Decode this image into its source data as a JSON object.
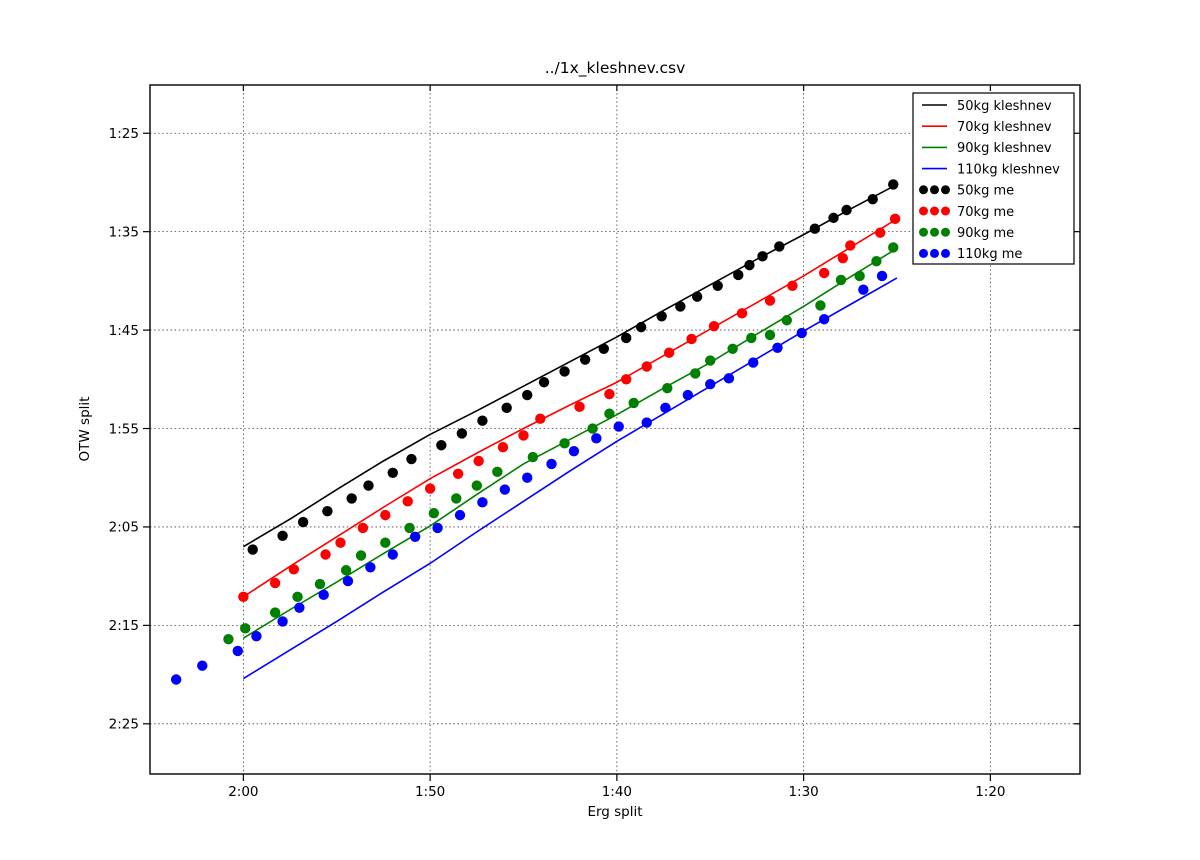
{
  "chart_data": {
    "type": "line+scatter",
    "title": "../1x_kleshnev.csv",
    "xlabel": "Erg split",
    "ylabel": "OTW split",
    "grid": true,
    "background": "#ffffff",
    "x_axis": {
      "label": "Erg split",
      "inverted": true,
      "range_seconds": [
        125.0,
        75.2
      ],
      "ticks": [
        {
          "seconds": 120,
          "label": "2:00"
        },
        {
          "seconds": 110,
          "label": "1:50"
        },
        {
          "seconds": 100,
          "label": "1:40"
        },
        {
          "seconds": 90,
          "label": "1:30"
        },
        {
          "seconds": 80,
          "label": "1:20"
        }
      ]
    },
    "y_axis": {
      "label": "OTW split",
      "inverted": true,
      "range_seconds": [
        80.1,
        150.1
      ],
      "ticks": [
        {
          "seconds": 85,
          "label": "1:25"
        },
        {
          "seconds": 95,
          "label": "1:35"
        },
        {
          "seconds": 105,
          "label": "1:45"
        },
        {
          "seconds": 115,
          "label": "1:55"
        },
        {
          "seconds": 125,
          "label": "2:05"
        },
        {
          "seconds": 135,
          "label": "2:15"
        },
        {
          "seconds": 145,
          "label": "2:25"
        }
      ]
    },
    "legend": {
      "position": "upper-right"
    },
    "series": [
      {
        "name": "50kg kleshnev",
        "kind": "line",
        "color": "#000000",
        "points": [
          [
            120,
            127.0
          ],
          [
            117.5,
            124.2
          ],
          [
            115,
            121.2
          ],
          [
            112.5,
            118.3
          ],
          [
            110,
            115.6
          ],
          [
            107.5,
            113.2
          ],
          [
            105,
            110.7
          ],
          [
            102.5,
            108.2
          ],
          [
            100,
            105.7
          ],
          [
            97.5,
            103.0
          ],
          [
            95,
            100.4
          ],
          [
            92.5,
            97.8
          ],
          [
            90,
            95.3
          ],
          [
            87.5,
            92.7
          ],
          [
            85,
            90.2
          ]
        ]
      },
      {
        "name": "70kg kleshnev",
        "kind": "line",
        "color": "#ff0000",
        "points": [
          [
            120,
            132.1
          ],
          [
            117.5,
            129.0
          ],
          [
            115,
            126.0
          ],
          [
            112.5,
            123.0
          ],
          [
            110,
            120.1
          ],
          [
            107.5,
            117.5
          ],
          [
            105,
            115.0
          ],
          [
            102.5,
            112.6
          ],
          [
            100,
            110.3
          ],
          [
            97.5,
            107.6
          ],
          [
            95,
            104.9
          ],
          [
            92.5,
            102.2
          ],
          [
            90,
            99.5
          ],
          [
            87.5,
            96.6
          ],
          [
            85,
            93.7
          ]
        ]
      },
      {
        "name": "90kg kleshnev",
        "kind": "line",
        "color": "#008000",
        "points": [
          [
            120,
            136.3
          ],
          [
            117.5,
            133.4
          ],
          [
            115,
            130.6
          ],
          [
            112.5,
            127.7
          ],
          [
            110,
            124.9
          ],
          [
            107.5,
            121.7
          ],
          [
            105,
            118.6
          ],
          [
            102.5,
            116.1
          ],
          [
            100,
            113.6
          ],
          [
            97.5,
            110.9
          ],
          [
            95,
            108.3
          ],
          [
            92.5,
            105.4
          ],
          [
            90,
            102.6
          ],
          [
            87.5,
            99.6
          ],
          [
            85,
            96.7
          ]
        ]
      },
      {
        "name": "110kg kleshnev",
        "kind": "line",
        "color": "#0000ff",
        "points": [
          [
            120,
            140.4
          ],
          [
            117.5,
            137.5
          ],
          [
            115,
            134.6
          ],
          [
            112.5,
            131.6
          ],
          [
            110,
            128.7
          ],
          [
            107.5,
            125.5
          ],
          [
            105,
            122.4
          ],
          [
            102.5,
            119.3
          ],
          [
            100,
            116.3
          ],
          [
            97.5,
            113.5
          ],
          [
            95,
            110.7
          ],
          [
            92.5,
            107.9
          ],
          [
            90,
            105.1
          ],
          [
            87.5,
            102.4
          ],
          [
            85,
            99.7
          ]
        ]
      },
      {
        "name": "50kg me",
        "kind": "scatter",
        "color": "#000000",
        "points": [
          [
            119.5,
            127.3
          ],
          [
            117.9,
            125.9
          ],
          [
            116.8,
            124.5
          ],
          [
            115.5,
            123.4
          ],
          [
            114.2,
            122.1
          ],
          [
            113.3,
            120.8
          ],
          [
            112.0,
            119.5
          ],
          [
            111.0,
            118.1
          ],
          [
            109.4,
            116.7
          ],
          [
            108.3,
            115.5
          ],
          [
            107.2,
            114.2
          ],
          [
            105.9,
            112.9
          ],
          [
            104.8,
            111.6
          ],
          [
            103.9,
            110.3
          ],
          [
            102.8,
            109.2
          ],
          [
            101.7,
            108.0
          ],
          [
            100.7,
            106.9
          ],
          [
            99.5,
            105.8
          ],
          [
            98.7,
            104.7
          ],
          [
            97.6,
            103.6
          ],
          [
            96.6,
            102.6
          ],
          [
            95.7,
            101.6
          ],
          [
            94.6,
            100.5
          ],
          [
            93.5,
            99.4
          ],
          [
            92.9,
            98.4
          ],
          [
            92.2,
            97.5
          ],
          [
            91.3,
            96.5
          ],
          [
            89.4,
            94.7
          ],
          [
            88.4,
            93.6
          ],
          [
            87.7,
            92.8
          ],
          [
            86.3,
            91.7
          ],
          [
            85.2,
            90.2
          ]
        ]
      },
      {
        "name": "70kg me",
        "kind": "scatter",
        "color": "#ff0000",
        "points": [
          [
            120.0,
            132.1
          ],
          [
            118.3,
            130.7
          ],
          [
            117.3,
            129.3
          ],
          [
            115.6,
            127.8
          ],
          [
            114.8,
            126.6
          ],
          [
            113.6,
            125.1
          ],
          [
            112.4,
            123.8
          ],
          [
            111.2,
            122.4
          ],
          [
            110.0,
            121.1
          ],
          [
            108.5,
            119.6
          ],
          [
            107.4,
            118.3
          ],
          [
            106.1,
            116.9
          ],
          [
            105.0,
            115.7
          ],
          [
            104.1,
            114.0
          ],
          [
            102.0,
            112.8
          ],
          [
            100.4,
            111.5
          ],
          [
            99.5,
            110.0
          ],
          [
            98.4,
            108.7
          ],
          [
            97.2,
            107.3
          ],
          [
            96.0,
            105.9
          ],
          [
            94.8,
            104.6
          ],
          [
            93.3,
            103.3
          ],
          [
            91.8,
            102.0
          ],
          [
            90.6,
            100.5
          ],
          [
            88.9,
            99.2
          ],
          [
            87.9,
            97.7
          ],
          [
            87.5,
            96.4
          ],
          [
            85.9,
            95.1
          ],
          [
            85.1,
            93.7
          ]
        ]
      },
      {
        "name": "90kg me",
        "kind": "scatter",
        "color": "#008000",
        "points": [
          [
            120.8,
            136.4
          ],
          [
            119.9,
            135.3
          ],
          [
            118.3,
            133.7
          ],
          [
            117.1,
            132.1
          ],
          [
            115.9,
            130.8
          ],
          [
            114.5,
            129.4
          ],
          [
            113.7,
            127.9
          ],
          [
            112.4,
            126.6
          ],
          [
            111.1,
            125.1
          ],
          [
            109.8,
            123.6
          ],
          [
            108.6,
            122.1
          ],
          [
            107.5,
            120.8
          ],
          [
            106.4,
            119.4
          ],
          [
            104.5,
            117.9
          ],
          [
            102.8,
            116.5
          ],
          [
            101.3,
            115.0
          ],
          [
            100.4,
            113.5
          ],
          [
            99.1,
            112.4
          ],
          [
            97.3,
            110.9
          ],
          [
            95.8,
            109.4
          ],
          [
            95.0,
            108.1
          ],
          [
            93.8,
            106.9
          ],
          [
            92.8,
            105.8
          ],
          [
            91.8,
            105.5
          ],
          [
            90.9,
            104.0
          ],
          [
            89.1,
            102.5
          ],
          [
            88.0,
            99.9
          ],
          [
            87.0,
            99.5
          ],
          [
            86.1,
            98.0
          ],
          [
            85.2,
            96.6
          ]
        ]
      },
      {
        "name": "110kg me",
        "kind": "scatter",
        "color": "#0000ff",
        "points": [
          [
            123.6,
            140.5
          ],
          [
            122.2,
            139.1
          ],
          [
            120.3,
            137.6
          ],
          [
            119.3,
            136.1
          ],
          [
            117.9,
            134.6
          ],
          [
            117.0,
            133.2
          ],
          [
            115.7,
            131.9
          ],
          [
            114.4,
            130.5
          ],
          [
            113.2,
            129.1
          ],
          [
            112.0,
            127.8
          ],
          [
            110.8,
            126.0
          ],
          [
            109.6,
            125.1
          ],
          [
            108.4,
            123.8
          ],
          [
            107.2,
            122.5
          ],
          [
            106.0,
            121.2
          ],
          [
            104.8,
            120.0
          ],
          [
            103.5,
            118.6
          ],
          [
            102.3,
            117.3
          ],
          [
            101.1,
            116.0
          ],
          [
            99.9,
            114.8
          ],
          [
            98.4,
            114.4
          ],
          [
            97.4,
            112.9
          ],
          [
            96.2,
            111.6
          ],
          [
            95.0,
            110.5
          ],
          [
            94.0,
            109.9
          ],
          [
            92.7,
            108.3
          ],
          [
            91.4,
            106.8
          ],
          [
            90.1,
            105.3
          ],
          [
            88.9,
            103.9
          ],
          [
            86.8,
            100.9
          ],
          [
            85.8,
            99.5
          ]
        ]
      }
    ]
  }
}
